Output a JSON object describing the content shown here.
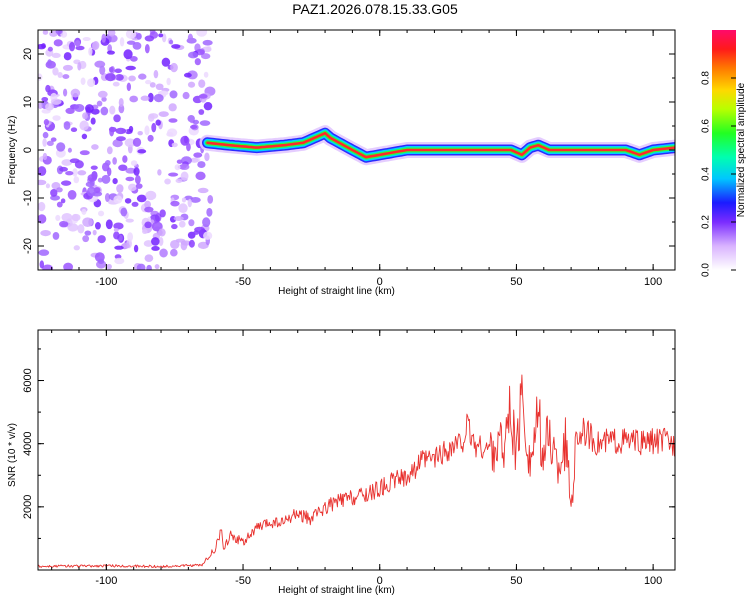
{
  "chart_data": [
    {
      "type": "heatmap",
      "title": "PAZ1.2026.078.15.33.G05",
      "xlabel": "Height of straight line (km)",
      "ylabel": "Frequency (Hz)",
      "xlim": [
        -125,
        108
      ],
      "ylim": [
        -25,
        25
      ],
      "xticks": [
        -100,
        -50,
        0,
        50,
        100
      ],
      "yticks": [
        -20,
        -10,
        0,
        10,
        20
      ],
      "colorbar": {
        "label": "Normalized spectral amplitude",
        "range": [
          0,
          1
        ],
        "ticks": [
          "0.0",
          "0.2",
          "0.4",
          "0.6",
          "0.8"
        ],
        "tick_values": [
          0.0,
          0.2,
          0.4,
          0.6,
          0.8
        ]
      },
      "noise_region_x": [
        -125,
        -62
      ],
      "signal_track": {
        "x": [
          -63,
          -55,
          -45,
          -35,
          -28,
          -20,
          -18,
          -10,
          -5,
          0,
          10,
          20,
          30,
          40,
          48,
          52,
          55,
          58,
          62,
          70,
          80,
          90,
          95,
          100,
          108
        ],
        "freq": [
          1.5,
          1.0,
          0.5,
          1.0,
          1.5,
          3.5,
          2.5,
          0.0,
          -1.5,
          -1.0,
          0.0,
          0.0,
          0.0,
          0.0,
          0.0,
          -1.0,
          0.5,
          1.0,
          0.0,
          0.0,
          0.0,
          0.0,
          -1.0,
          0.0,
          0.5
        ]
      }
    },
    {
      "type": "line",
      "title": "",
      "xlabel": "Height of straight line (km)",
      "ylabel": "SNR (10 * v/v)",
      "xlim": [
        -125,
        108
      ],
      "ylim": [
        0,
        7600
      ],
      "xticks": [
        -100,
        -50,
        0,
        50,
        100
      ],
      "yticks": [
        2000,
        4000,
        6000
      ],
      "series": [
        {
          "name": "SNR",
          "color": "#e8312e",
          "x": [
            -125,
            -100,
            -80,
            -65,
            -60,
            -58,
            -57,
            -55,
            -50,
            -45,
            -40,
            -35,
            -30,
            -25,
            -20,
            -15,
            -10,
            -5,
            0,
            5,
            10,
            15,
            20,
            25,
            30,
            32,
            35,
            40,
            45,
            48,
            50,
            52,
            55,
            58,
            60,
            62,
            65,
            68,
            70,
            72,
            75,
            80,
            85,
            90,
            95,
            100,
            105,
            108
          ],
          "values": [
            120,
            130,
            110,
            150,
            700,
            1300,
            600,
            1100,
            900,
            1300,
            1500,
            1500,
            1800,
            1600,
            2000,
            2200,
            2300,
            2400,
            2600,
            2800,
            3000,
            3400,
            3500,
            3800,
            4000,
            4500,
            3900,
            3800,
            4000,
            5000,
            3500,
            5500,
            3300,
            4800,
            3600,
            4300,
            3200,
            4000,
            2000,
            4200,
            4400,
            4000,
            4100,
            4100,
            4000,
            4100,
            4100,
            4000
          ]
        }
      ]
    }
  ]
}
